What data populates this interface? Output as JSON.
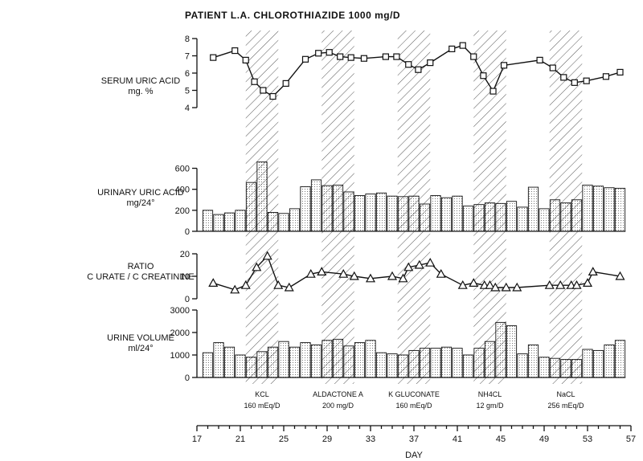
{
  "chart_data": {
    "type": "composite",
    "title": "PATIENT L.A. CHLOROTHIAZIDE 1000 mg/D",
    "xlabel": "DAY",
    "x_ticks": [
      17,
      21,
      25,
      29,
      33,
      37,
      41,
      45,
      49,
      53,
      57
    ],
    "xlim": [
      17,
      57
    ],
    "treatments": [
      {
        "name": "KCL",
        "dose": "160 mEq/D",
        "start": 21.5,
        "end": 24.5
      },
      {
        "name": "ALDACTONE A",
        "dose": "200 mg/D",
        "start": 28.5,
        "end": 31.5
      },
      {
        "name": "K GLUCONATE",
        "dose": "160 mEq/D",
        "start": 35.5,
        "end": 38.5
      },
      {
        "name": "NH4CL",
        "dose": "12 gm/D",
        "start": 42.5,
        "end": 45.5
      },
      {
        "name": "NaCL",
        "dose": "256 mEq/D",
        "start": 49.5,
        "end": 52.5
      }
    ],
    "panels": [
      {
        "id": "serum",
        "type": "line",
        "label_lines": [
          "SERUM URIC ACID",
          "mg. %"
        ],
        "ylim": [
          4,
          8
        ],
        "y_ticks": [
          4,
          5,
          6,
          7,
          8
        ],
        "marker": "square",
        "points": [
          [
            18.5,
            6.9
          ],
          [
            20.5,
            7.3
          ],
          [
            21.5,
            6.75
          ],
          [
            22.3,
            5.5
          ],
          [
            23.1,
            5.0
          ],
          [
            24.0,
            4.65
          ],
          [
            25.2,
            5.4
          ],
          [
            27.0,
            6.8
          ],
          [
            28.2,
            7.15
          ],
          [
            29.2,
            7.2
          ],
          [
            30.2,
            6.95
          ],
          [
            31.2,
            6.9
          ],
          [
            32.4,
            6.85
          ],
          [
            34.4,
            6.95
          ],
          [
            35.4,
            6.95
          ],
          [
            36.5,
            6.5
          ],
          [
            37.4,
            6.2
          ],
          [
            38.5,
            6.6
          ],
          [
            40.5,
            7.4
          ],
          [
            41.5,
            7.6
          ],
          [
            42.5,
            6.95
          ],
          [
            43.4,
            5.85
          ],
          [
            44.3,
            4.95
          ],
          [
            45.3,
            6.45
          ],
          [
            48.6,
            6.75
          ],
          [
            49.8,
            6.3
          ],
          [
            50.8,
            5.75
          ],
          [
            51.8,
            5.45
          ],
          [
            52.9,
            5.55
          ],
          [
            54.7,
            5.8
          ],
          [
            56.0,
            6.05
          ]
        ]
      },
      {
        "id": "urinary",
        "type": "bar",
        "label_lines": [
          "URINARY URIC ACID",
          "mg/24°"
        ],
        "ylim": [
          0,
          650
        ],
        "y_ticks": [
          0,
          200,
          400,
          600
        ],
        "x": [
          18,
          19,
          20,
          21,
          22,
          23,
          24,
          25,
          26,
          27,
          28,
          29,
          30,
          31,
          32,
          33,
          34,
          35,
          36,
          37,
          38,
          39,
          40,
          41,
          42,
          43,
          44,
          45,
          46,
          47,
          48,
          49,
          50,
          51,
          52,
          53,
          54,
          55,
          56
        ],
        "values": [
          200,
          160,
          175,
          200,
          465,
          660,
          180,
          170,
          215,
          425,
          490,
          435,
          440,
          375,
          340,
          355,
          365,
          335,
          330,
          335,
          260,
          340,
          320,
          335,
          240,
          255,
          270,
          265,
          285,
          230,
          420,
          215,
          300,
          270,
          300,
          440,
          430,
          415,
          410
        ]
      },
      {
        "id": "ratio",
        "type": "line",
        "label_lines": [
          "RATIO",
          "C URATE / C CREATININE"
        ],
        "ylim": [
          0,
          20
        ],
        "y_ticks": [
          0,
          10,
          20
        ],
        "marker": "triangle",
        "points": [
          [
            18.5,
            7
          ],
          [
            20.5,
            4
          ],
          [
            21.5,
            6
          ],
          [
            22.5,
            14
          ],
          [
            23.5,
            19
          ],
          [
            24.5,
            6
          ],
          [
            25.5,
            5
          ],
          [
            27.5,
            11
          ],
          [
            28.5,
            12
          ],
          [
            30.5,
            11
          ],
          [
            31.5,
            10
          ],
          [
            33.0,
            9
          ],
          [
            35.0,
            10
          ],
          [
            36.0,
            9
          ],
          [
            36.5,
            14
          ],
          [
            37.5,
            15
          ],
          [
            38.5,
            16
          ],
          [
            39.5,
            11
          ],
          [
            41.5,
            6
          ],
          [
            42.5,
            7
          ],
          [
            43.5,
            6
          ],
          [
            44.0,
            6
          ],
          [
            44.5,
            5
          ],
          [
            45.5,
            5
          ],
          [
            46.5,
            5
          ],
          [
            49.5,
            6
          ],
          [
            50.5,
            6
          ],
          [
            51.5,
            6
          ],
          [
            52.0,
            6
          ],
          [
            53.0,
            7
          ],
          [
            53.5,
            12
          ],
          [
            56.0,
            10
          ]
        ]
      },
      {
        "id": "volume",
        "type": "bar",
        "label_lines": [
          "URINE VOLUME",
          "ml/24°"
        ],
        "ylim": [
          0,
          3000
        ],
        "y_ticks": [
          0,
          1000,
          2000,
          3000
        ],
        "x": [
          18,
          19,
          20,
          21,
          22,
          23,
          24,
          25,
          26,
          27,
          28,
          29,
          30,
          31,
          32,
          33,
          34,
          35,
          36,
          37,
          38,
          39,
          40,
          41,
          42,
          43,
          44,
          45,
          46,
          47,
          48,
          49,
          50,
          51,
          52,
          53,
          54,
          55,
          56
        ],
        "values": [
          1100,
          1550,
          1350,
          1000,
          900,
          1150,
          1350,
          1600,
          1350,
          1550,
          1450,
          1650,
          1700,
          1400,
          1550,
          1650,
          1100,
          1050,
          1000,
          1200,
          1300,
          1300,
          1350,
          1300,
          1000,
          1300,
          1600,
          2450,
          2300,
          1050,
          1450,
          900,
          850,
          800,
          800,
          1250,
          1200,
          1450,
          1650
        ]
      }
    ]
  }
}
